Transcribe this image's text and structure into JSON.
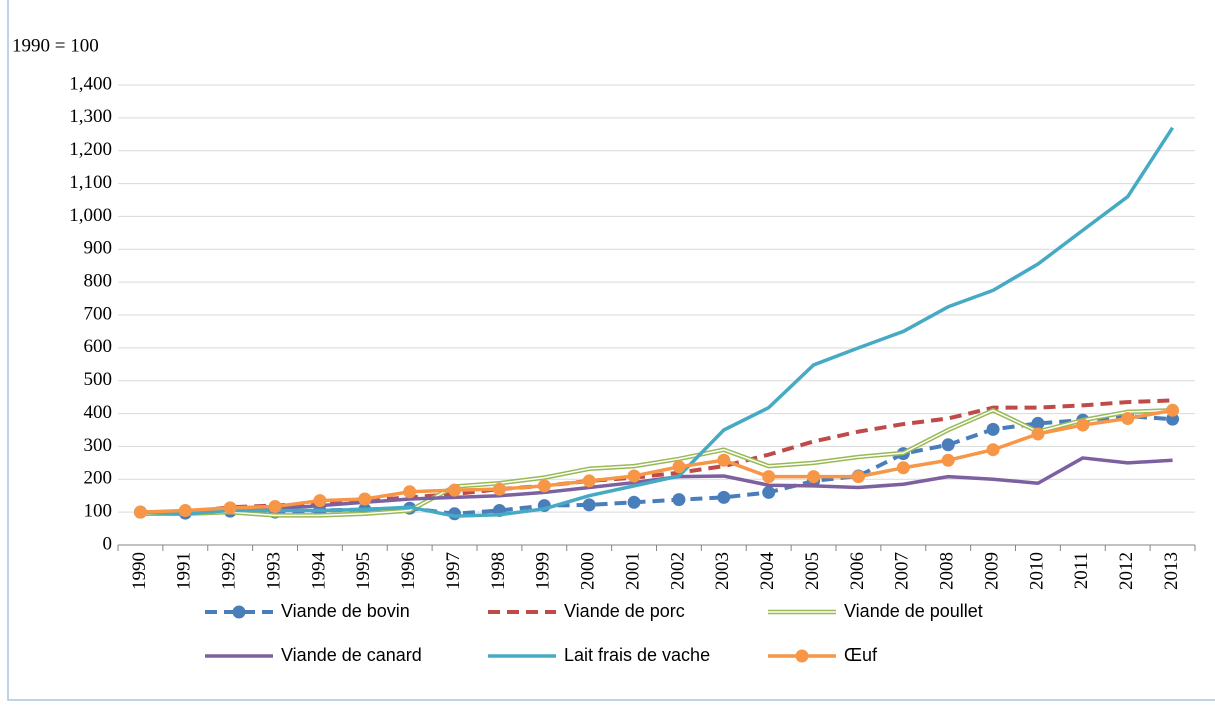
{
  "chart_data": {
    "type": "line",
    "y_axis_label": "1990 = 100",
    "categories": [
      "1990",
      "1991",
      "1992",
      "1993",
      "1994",
      "1995",
      "1996",
      "1997",
      "1998",
      "1999",
      "2000",
      "2001",
      "2002",
      "2003",
      "2004",
      "2005",
      "2006",
      "2007",
      "2008",
      "2009",
      "2010",
      "2011",
      "2012",
      "2013"
    ],
    "ylim": [
      0,
      1400
    ],
    "yticks": [
      0,
      100,
      200,
      300,
      400,
      500,
      600,
      700,
      800,
      900,
      {
        "value": 1000,
        "label": "1,000"
      },
      {
        "value": 1100,
        "label": "1,100"
      },
      {
        "value": 1200,
        "label": "1,200"
      },
      {
        "value": 1300,
        "label": "1,300"
      },
      {
        "value": 1400,
        "label": "1,400"
      }
    ],
    "grid": true,
    "legend": "bottom",
    "series": [
      {
        "name": "Viande de bovin",
        "color": "#4a7ebb",
        "style": "dashed",
        "marker": "circle",
        "values": [
          100,
          97,
          103,
          100,
          105,
          108,
          112,
          95,
          105,
          120,
          122,
          130,
          138,
          145,
          160,
          195,
          210,
          278,
          305,
          352,
          370,
          380,
          392,
          383
        ]
      },
      {
        "name": "Viande de porc",
        "color": "#be4b48",
        "style": "dashed",
        "values": [
          100,
          100,
          115,
          120,
          128,
          135,
          145,
          155,
          170,
          180,
          195,
          205,
          220,
          240,
          275,
          315,
          345,
          368,
          385,
          418,
          418,
          425,
          435,
          440
        ]
      },
      {
        "name": "Viande de poullet",
        "color": "#98b954",
        "style": "double",
        "values": [
          95,
          95,
          100,
          90,
          90,
          95,
          105,
          178,
          188,
          205,
          232,
          240,
          262,
          290,
          240,
          250,
          268,
          280,
          350,
          410,
          345,
          380,
          405,
          410
        ]
      },
      {
        "name": "Viande de canard",
        "color": "#7d60a0",
        "style": "solid",
        "values": [
          100,
          100,
          110,
          110,
          120,
          130,
          140,
          145,
          150,
          160,
          175,
          190,
          208,
          210,
          182,
          180,
          175,
          185,
          208,
          200,
          188,
          265,
          250,
          258
        ]
      },
      {
        "name": "Lait frais de vache",
        "color": "#46aac5",
        "style": "solid",
        "values": [
          100,
          95,
          105,
          105,
          105,
          108,
          115,
          88,
          92,
          110,
          150,
          180,
          210,
          350,
          418,
          548,
          600,
          650,
          725,
          775,
          855,
          958,
          1060,
          1270
        ]
      },
      {
        "name": "Œuf",
        "color": "#f79646",
        "style": "solid",
        "marker": "circle",
        "values": [
          100,
          105,
          113,
          117,
          135,
          140,
          162,
          167,
          170,
          180,
          195,
          210,
          238,
          258,
          208,
          208,
          208,
          235,
          258,
          290,
          338,
          365,
          385,
          410
        ]
      }
    ]
  }
}
